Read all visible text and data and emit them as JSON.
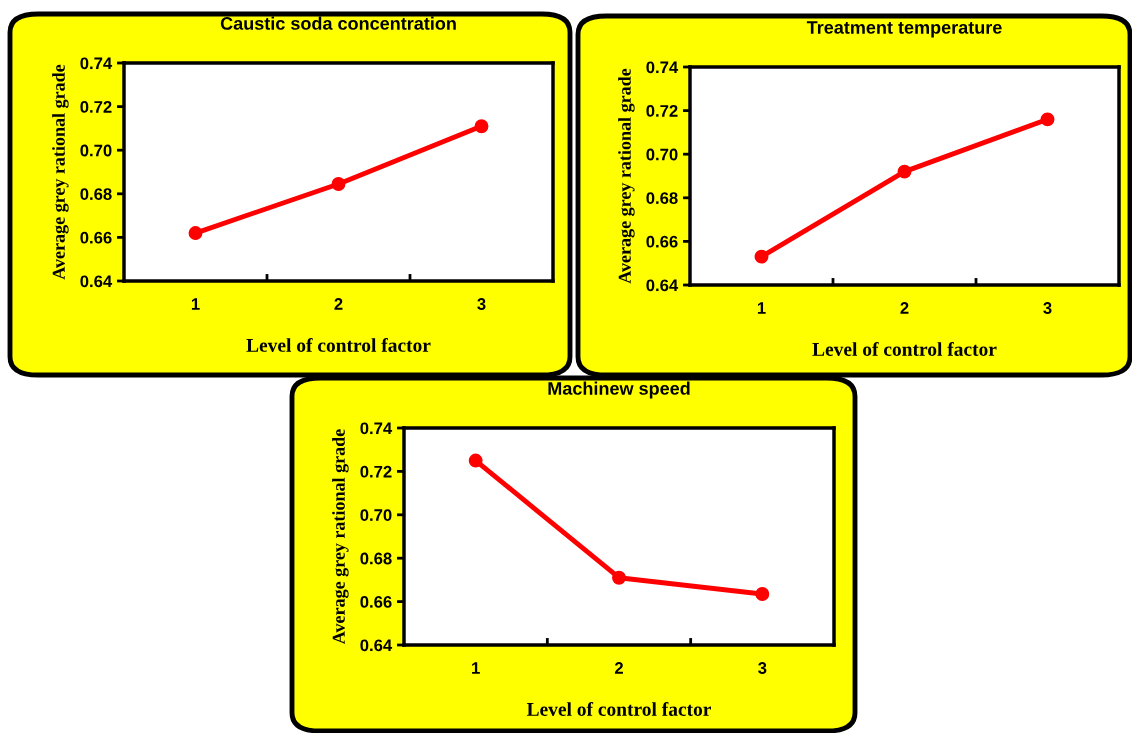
{
  "chart_data": [
    {
      "type": "line",
      "title": "Caustic soda concentration",
      "xlabel": "Level of control factor",
      "ylabel": "Average grey rational grade",
      "categories": [
        "1",
        "2",
        "3"
      ],
      "series": [
        {
          "color": "#ff0000",
          "values": [
            0.662,
            0.6845,
            0.711
          ]
        }
      ],
      "ylim": [
        0.64,
        0.74
      ],
      "yticks": [
        {
          "value": 0.64,
          "label": "0.64"
        },
        {
          "value": 0.66,
          "label": "0.66"
        },
        {
          "value": 0.68,
          "label": "0.68"
        },
        {
          "value": 0.7,
          "label": "0.70"
        },
        {
          "value": 0.72,
          "label": "0.72"
        },
        {
          "value": 0.74,
          "label": "0.74"
        }
      ],
      "marker": "circle",
      "line_style": "solid",
      "grid": false,
      "legend": false
    },
    {
      "type": "line",
      "title": "Treatment temperature",
      "xlabel": "Level of control factor",
      "ylabel": "Average grey rational grade",
      "categories": [
        "1",
        "2",
        "3"
      ],
      "series": [
        {
          "color": "#ff0000",
          "values": [
            0.653,
            0.692,
            0.716
          ]
        }
      ],
      "ylim": [
        0.64,
        0.74
      ],
      "yticks": [
        {
          "value": 0.64,
          "label": "0.64"
        },
        {
          "value": 0.66,
          "label": "0.66"
        },
        {
          "value": 0.68,
          "label": "0.68"
        },
        {
          "value": 0.7,
          "label": "0.70"
        },
        {
          "value": 0.72,
          "label": "0.72"
        },
        {
          "value": 0.74,
          "label": "0.74"
        }
      ],
      "marker": "circle",
      "line_style": "solid",
      "grid": false,
      "legend": false
    },
    {
      "type": "line",
      "title": "Machinew speed",
      "xlabel": "Level of control factor",
      "ylabel": "Average grey rational grade",
      "categories": [
        "1",
        "2",
        "3"
      ],
      "series": [
        {
          "color": "#ff0000",
          "values": [
            0.725,
            0.671,
            0.6635
          ]
        }
      ],
      "ylim": [
        0.64,
        0.74
      ],
      "yticks": [
        {
          "value": 0.64,
          "label": "0.64"
        },
        {
          "value": 0.66,
          "label": "0.66"
        },
        {
          "value": 0.68,
          "label": "0.68"
        },
        {
          "value": 0.7,
          "label": "0.70"
        },
        {
          "value": 0.72,
          "label": "0.72"
        },
        {
          "value": 0.74,
          "label": "0.74"
        }
      ],
      "marker": "circle",
      "line_style": "solid",
      "grid": false,
      "legend": false
    }
  ]
}
